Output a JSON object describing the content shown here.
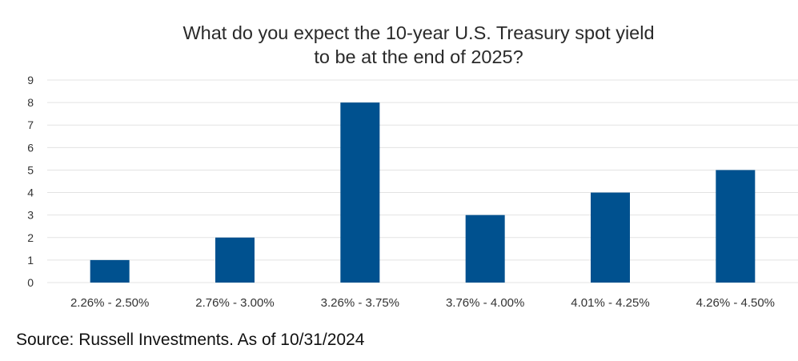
{
  "chart_data": {
    "type": "bar",
    "title_line1": "What do you expect the 10-year U.S. Treasury spot yield",
    "title_line2": "to be at the end of 2025?",
    "categories": [
      "2.26% - 2.50%",
      "2.76% - 3.00%",
      "3.26% - 3.75%",
      "3.76% - 4.00%",
      "4.01% - 4.25%",
      "4.26% - 4.50%"
    ],
    "values": [
      1,
      2,
      8,
      3,
      4,
      5
    ],
    "ylim": [
      0,
      9
    ],
    "yticks": [
      "0",
      "1",
      "2",
      "3",
      "4",
      "5",
      "6",
      "7",
      "8",
      "9"
    ],
    "grid": true,
    "bar_color": "#00518f",
    "grid_color": "#e3e3e3",
    "legend": "none"
  },
  "source": "Source: Russell Investments. As of 10/31/2024"
}
